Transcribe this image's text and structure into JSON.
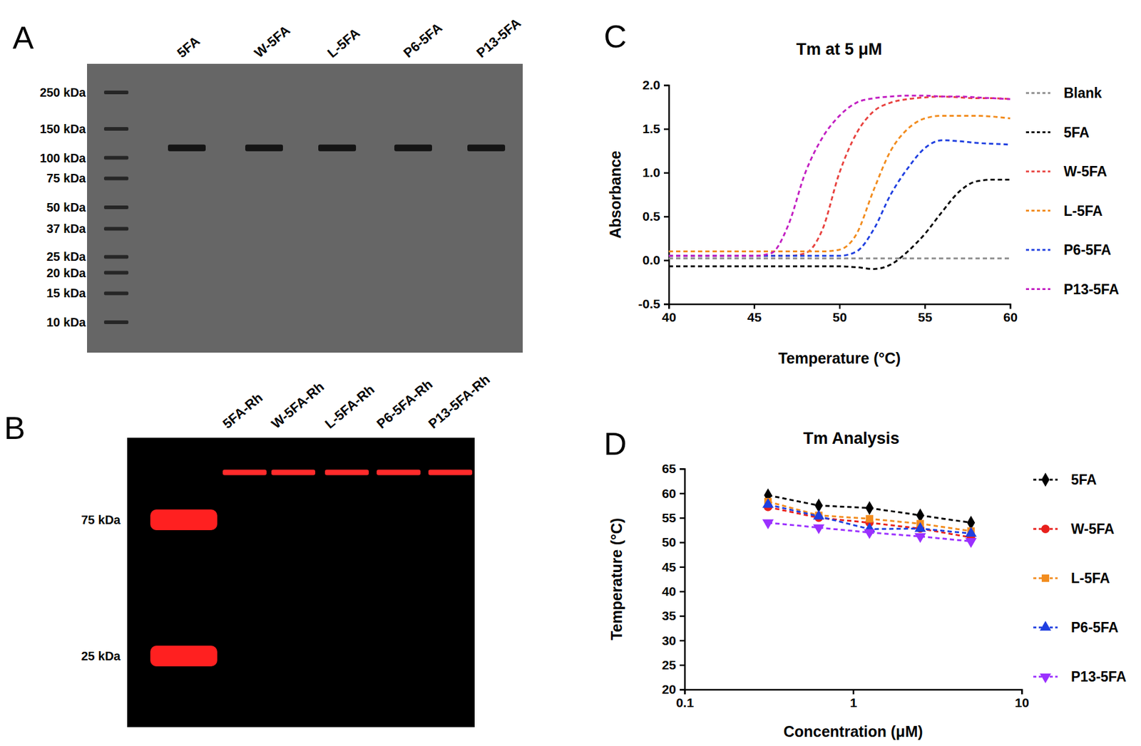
{
  "gels": [
    {
      "panel": "A",
      "ladder": [
        {
          "value": 250,
          "label": "250 kDa"
        },
        {
          "value": 150,
          "label": "150 kDa"
        },
        {
          "value": 100,
          "label": "100 kDa"
        },
        {
          "value": 75,
          "label": "75 kDa"
        },
        {
          "value": 50,
          "label": "50 kDa"
        },
        {
          "value": 37,
          "label": "37 kDa"
        },
        {
          "value": 25,
          "label": "25 kDa"
        },
        {
          "value": 20,
          "label": "20 kDa"
        },
        {
          "value": 15,
          "label": "15 kDa"
        },
        {
          "value": 10,
          "label": "10 kDa"
        }
      ],
      "lanes": [
        {
          "label": "5FA",
          "bands": [
            115
          ]
        },
        {
          "label": "W-5FA",
          "bands": [
            115
          ]
        },
        {
          "label": "L-5FA",
          "bands": [
            115
          ]
        },
        {
          "label": "P6-5FA",
          "bands": [
            115
          ]
        },
        {
          "label": "P13-5FA",
          "bands": [
            115
          ]
        }
      ]
    },
    {
      "panel": "B",
      "ladder": [
        {
          "value": 75,
          "label": "75 kDa"
        },
        {
          "value": 25,
          "label": "25 kDa"
        }
      ],
      "lanes": [
        {
          "label": "5FA-Rh",
          "bands": [
            110
          ]
        },
        {
          "label": "W-5FA-Rh",
          "bands": [
            110
          ]
        },
        {
          "label": "L-5FA-Rh",
          "bands": [
            110
          ]
        },
        {
          "label": "P6-5FA-Rh",
          "bands": [
            110
          ]
        },
        {
          "label": "P13-5FA-Rh",
          "bands": [
            110
          ]
        }
      ]
    }
  ],
  "chart_data": [
    {
      "panel": "C",
      "type": "line",
      "title": "Tm at 5 μM",
      "x_label": "Temperature (°C)",
      "y_label": "Absorbance",
      "x": [
        40,
        41,
        42,
        43,
        44,
        45,
        46,
        47,
        48,
        49,
        50,
        51,
        52,
        53,
        54,
        55,
        56,
        57,
        58,
        59,
        60
      ],
      "xlim": [
        40,
        60
      ],
      "xticks": [
        40,
        45,
        50,
        55,
        60
      ],
      "ylim": [
        -0.5,
        2.0
      ],
      "yticks": [
        -0.5,
        {
          "value": 0,
          "label": "0.0"
        },
        0.5,
        {
          "value": 1,
          "label": "1.0"
        },
        1.5,
        {
          "value": 2,
          "label": "2.0"
        }
      ],
      "line_style": "dashed",
      "legend": "right",
      "series": [
        {
          "name": "Blank",
          "color": "#8c8c8c",
          "values": [
            0.02,
            0.02,
            0.02,
            0.02,
            0.02,
            0.02,
            0.02,
            0.02,
            0.02,
            0.02,
            0.02,
            0.02,
            0.02,
            0.02,
            0.02,
            0.02,
            0.02,
            0.02,
            0.02,
            0.02,
            0.02
          ]
        },
        {
          "name": "5FA",
          "color": "#000000",
          "values": [
            -0.07,
            -0.07,
            -0.07,
            -0.07,
            -0.07,
            -0.07,
            -0.07,
            -0.07,
            -0.07,
            -0.07,
            -0.07,
            -0.08,
            -0.1,
            -0.05,
            0.1,
            0.3,
            0.55,
            0.78,
            0.9,
            0.92,
            0.92
          ]
        },
        {
          "name": "W-5FA",
          "color": "#e8423f",
          "values": [
            0.05,
            0.05,
            0.05,
            0.05,
            0.05,
            0.05,
            0.05,
            0.05,
            0.08,
            0.35,
            1.0,
            1.45,
            1.7,
            1.8,
            1.84,
            1.86,
            1.87,
            1.86,
            1.85,
            1.85,
            1.84
          ]
        },
        {
          "name": "L-5FA",
          "color": "#f28c1e",
          "values": [
            0.1,
            0.1,
            0.1,
            0.1,
            0.1,
            0.1,
            0.1,
            0.1,
            0.1,
            0.1,
            0.12,
            0.3,
            0.8,
            1.25,
            1.5,
            1.62,
            1.65,
            1.65,
            1.65,
            1.64,
            1.62
          ]
        },
        {
          "name": "P6-5FA",
          "color": "#1f3fe0",
          "values": [
            0.05,
            0.05,
            0.05,
            0.05,
            0.05,
            0.05,
            0.05,
            0.05,
            0.05,
            0.05,
            0.05,
            0.1,
            0.35,
            0.75,
            1.05,
            1.28,
            1.37,
            1.36,
            1.34,
            1.33,
            1.32
          ]
        },
        {
          "name": "P13-5FA",
          "color": "#c21fc2",
          "values": [
            0.05,
            0.05,
            0.05,
            0.05,
            0.05,
            0.05,
            0.08,
            0.4,
            1.0,
            1.4,
            1.65,
            1.8,
            1.85,
            1.87,
            1.88,
            1.88,
            1.87,
            1.87,
            1.86,
            1.85,
            1.84
          ]
        }
      ]
    },
    {
      "panel": "D",
      "type": "line",
      "title": "Tm Analysis",
      "x_label": "Concentration (μM)",
      "y_label": "Temperature (°C)",
      "log": "x",
      "x": [
        0.3125,
        0.625,
        1.25,
        2.5,
        5
      ],
      "xlim": [
        0.1,
        10
      ],
      "xticks": [
        0.1,
        1,
        10
      ],
      "ylim": [
        20,
        65
      ],
      "yticks": [
        20,
        25,
        30,
        35,
        40,
        45,
        50,
        55,
        60,
        65
      ],
      "line_style": "dashed",
      "legend": "right",
      "series": [
        {
          "name": "5FA",
          "color": "#000000",
          "marker": "diamond",
          "values": [
            59.6,
            57.5,
            57.0,
            55.5,
            54.0
          ]
        },
        {
          "name": "W-5FA",
          "color": "#e8201c",
          "marker": "circle",
          "values": [
            57.2,
            55.0,
            54.0,
            52.8,
            51.0
          ]
        },
        {
          "name": "L-5FA",
          "color": "#f28c1e",
          "marker": "square",
          "values": [
            58.3,
            55.5,
            54.8,
            53.8,
            52.3
          ]
        },
        {
          "name": "P6-5FA",
          "color": "#1f3fe0",
          "marker": "triangle",
          "values": [
            57.7,
            55.3,
            52.7,
            52.8,
            51.8
          ]
        },
        {
          "name": "P13-5FA",
          "color": "#9b30ff",
          "marker": "triangle-down",
          "values": [
            54.0,
            53.0,
            52.0,
            51.2,
            50.2
          ]
        }
      ]
    }
  ]
}
